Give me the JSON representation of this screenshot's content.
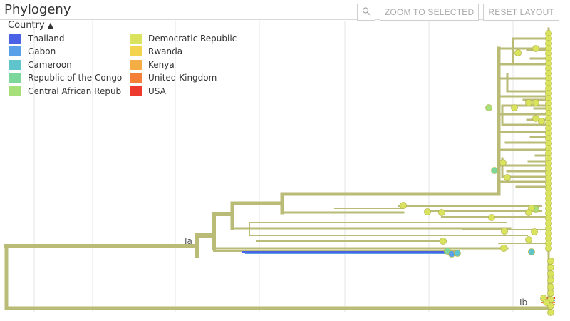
{
  "panel": {
    "title": "Phylogeny"
  },
  "toolbar": {
    "zoom_icon": "magnifier-icon",
    "zoom_label": "ZOOM TO SELECTED",
    "reset_label": "RESET LAYOUT"
  },
  "legend": {
    "title": "Country",
    "toggle_icon": "chevron-up-icon",
    "items": [
      {
        "label": "Thailand",
        "color": "#4a63e6"
      },
      {
        "label": "Gabon",
        "color": "#5aa0e8"
      },
      {
        "label": "Cameroon",
        "color": "#5fc4cc"
      },
      {
        "label": "Republic of the Congo",
        "color": "#7dd69a"
      },
      {
        "label": "Central African Repub",
        "color": "#a7e07a"
      },
      {
        "label": "Democratic Republic",
        "color": "#d9e35e"
      },
      {
        "label": "Rwanda",
        "color": "#f2d44e"
      },
      {
        "label": "Kenya",
        "color": "#f4ae45"
      },
      {
        "label": "United Kingdom",
        "color": "#f47f38"
      },
      {
        "label": "USA",
        "color": "#ee3a2e"
      }
    ]
  },
  "clades": {
    "ia": "Ia",
    "ib": "Ib"
  },
  "colors": {
    "branch": "#b9bb76",
    "tip": "#d9e35e",
    "grid": "#e6e6e6"
  }
}
